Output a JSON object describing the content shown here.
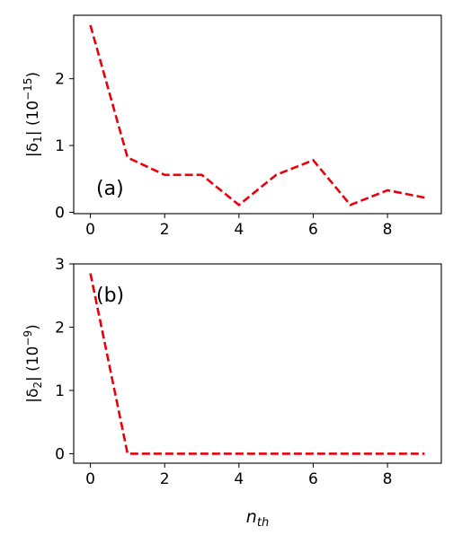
{
  "chart_data": [
    {
      "type": "line",
      "panel_label": "(a)",
      "ylabel_html": [
        "|δ",
        "1",
        "| (10",
        "−15",
        ")"
      ],
      "xlabel": "",
      "x": [
        0,
        1,
        2,
        3,
        4,
        5,
        6,
        7,
        8,
        9
      ],
      "y": [
        2.8,
        0.82,
        0.56,
        0.56,
        0.11,
        0.56,
        0.78,
        0.11,
        0.33,
        0.22
      ],
      "xlim": [
        -0.45,
        9.45
      ],
      "ylim": [
        -0.02,
        2.95
      ],
      "xticks": [
        0,
        2,
        4,
        6,
        8
      ],
      "yticks": [
        0,
        1,
        2
      ],
      "line_color": "#e8000b",
      "line_style": "dashed",
      "grid": false
    },
    {
      "type": "line",
      "panel_label": "(b)",
      "ylabel_html": [
        "|δ",
        "2",
        "| (10",
        "−9",
        ")"
      ],
      "xlabel_main": "n",
      "xlabel_sub": "th",
      "x": [
        0,
        1,
        2,
        3,
        4,
        5,
        6,
        7,
        8,
        9
      ],
      "y": [
        2.85,
        0.0,
        0.0,
        0.0,
        0.0,
        0.0,
        0.0,
        0.0,
        0.0,
        0.0
      ],
      "xlim": [
        -0.45,
        9.45
      ],
      "ylim": [
        -0.15,
        3.0
      ],
      "xticks": [
        0,
        2,
        4,
        6,
        8
      ],
      "yticks": [
        0,
        1,
        2,
        3
      ],
      "line_color": "#e8000b",
      "line_style": "dashed",
      "grid": false
    }
  ]
}
